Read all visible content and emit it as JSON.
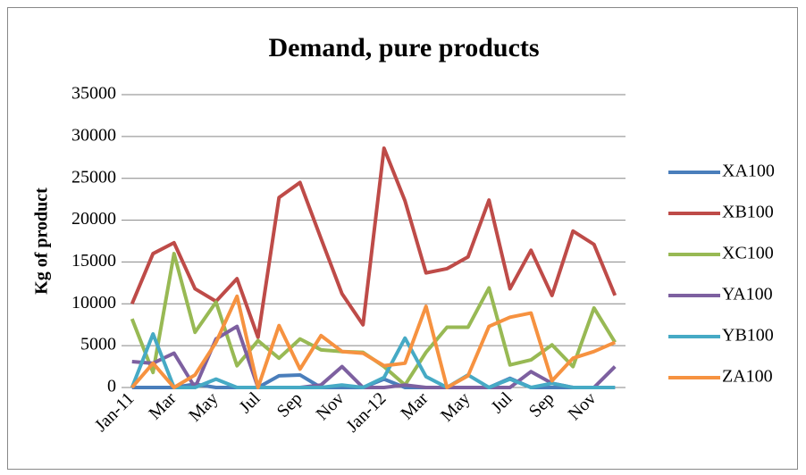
{
  "chart_data": {
    "type": "line",
    "title": "Demand, pure products",
    "y_label": "Kg of product",
    "categories": [
      "Jan-11",
      null,
      "Mar",
      null,
      "May",
      null,
      "Jul",
      null,
      "Sep",
      null,
      "Nov",
      null,
      "Jan-12",
      null,
      "Mar",
      null,
      "May",
      null,
      "Jul",
      null,
      "Sep",
      null,
      "Nov",
      null
    ],
    "series": [
      {
        "name": "XA100",
        "color": "#4a7ebb",
        "values": [
          0,
          0,
          0,
          400,
          0,
          0,
          0,
          1400,
          1500,
          0,
          0,
          0,
          1000,
          0,
          0,
          0,
          0,
          0,
          1100,
          0,
          0,
          0,
          0,
          0
        ]
      },
      {
        "name": "XB100",
        "color": "#be4b48",
        "values": [
          10000,
          16000,
          17300,
          11800,
          10300,
          13000,
          6000,
          22700,
          24500,
          17800,
          11200,
          7500,
          28600,
          22300,
          13700,
          14200,
          15600,
          22400,
          11800,
          16400,
          11000,
          18700,
          17100,
          11000
        ]
      },
      {
        "name": "XC100",
        "color": "#98b954",
        "values": [
          8200,
          1800,
          16000,
          6600,
          10200,
          2600,
          5600,
          3500,
          5800,
          4500,
          4300,
          4200,
          2500,
          300,
          4200,
          7200,
          7200,
          11900,
          2700,
          3300,
          5100,
          2500,
          9500,
          5400
        ]
      },
      {
        "name": "YA100",
        "color": "#7d60a0",
        "values": [
          3100,
          2900,
          4100,
          0,
          5800,
          7300,
          0,
          0,
          0,
          300,
          2500,
          0,
          0,
          300,
          0,
          0,
          0,
          0,
          0,
          1900,
          500,
          0,
          0,
          2500
        ]
      },
      {
        "name": "YB100",
        "color": "#46aac5",
        "values": [
          0,
          6400,
          0,
          0,
          1000,
          0,
          0,
          0,
          0,
          0,
          300,
          0,
          1200,
          5900,
          1300,
          0,
          1500,
          0,
          1000,
          0,
          500,
          0,
          0,
          0
        ]
      },
      {
        "name": "ZA100",
        "color": "#f69240",
        "values": [
          0,
          2900,
          0,
          1500,
          5400,
          10900,
          0,
          7400,
          2200,
          6200,
          4300,
          4100,
          2600,
          2900,
          9700,
          0,
          1400,
          7300,
          8400,
          8900,
          800,
          3500,
          4300,
          5400
        ]
      }
    ],
    "ylim": [
      0,
      35000
    ],
    "yticks": [
      0,
      5000,
      10000,
      15000,
      20000,
      25000,
      30000,
      35000
    ],
    "grid": true,
    "legend": "right"
  }
}
